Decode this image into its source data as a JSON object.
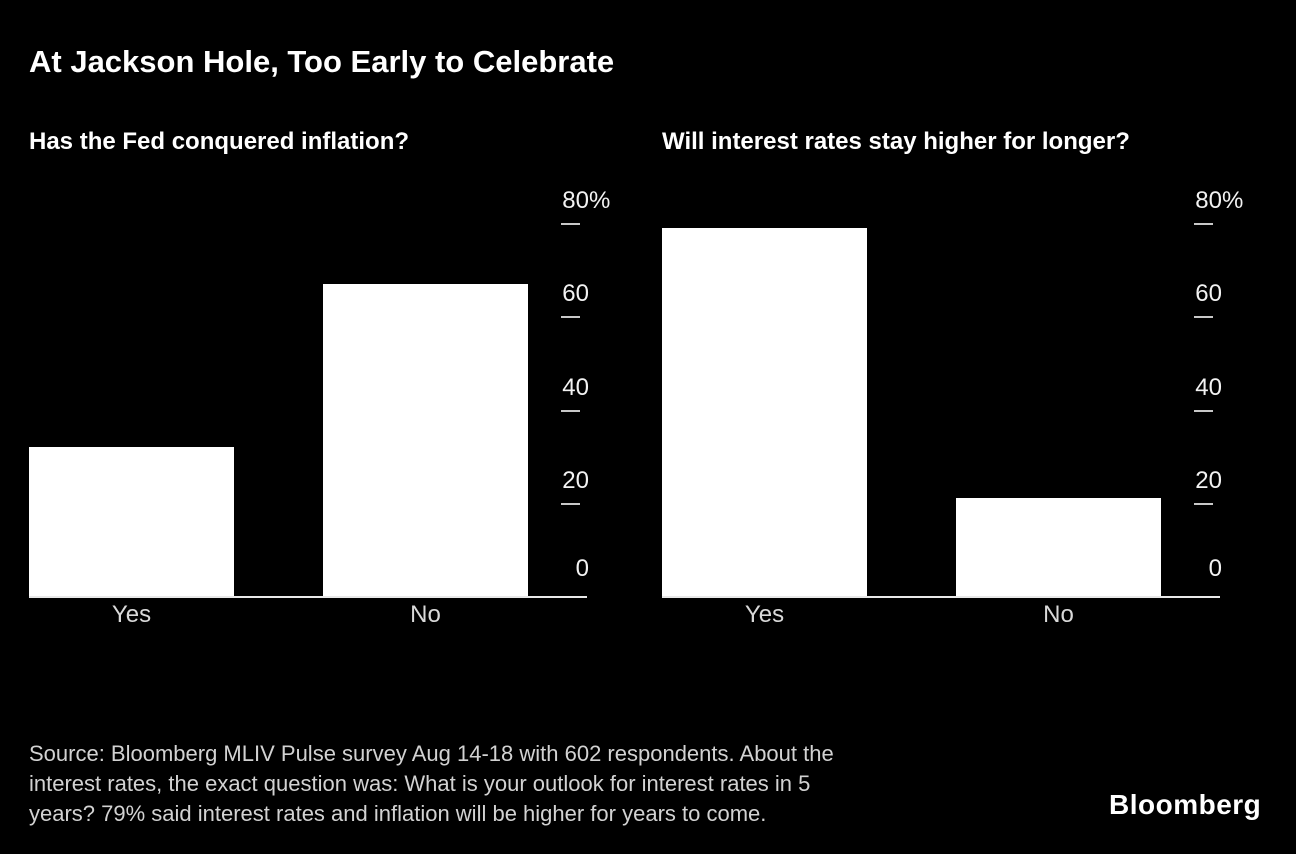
{
  "title": "At Jackson Hole, Too Early to Celebrate",
  "colors": {
    "background": "#000000",
    "title": "#ffffff",
    "subtitle": "#ffffff",
    "bar": "#ffffff",
    "axis_label": "#f2f2f2",
    "tick": "#c8c8c8",
    "baseline": "#e8e8e8",
    "category_label": "#d9d9d9",
    "footer": "#d2d2d2",
    "logo": "#ffffff"
  },
  "chart_data": [
    {
      "type": "bar",
      "title": "Has the Fed conquered inflation?",
      "categories": [
        "Yes",
        "No"
      ],
      "values": [
        32,
        67
      ],
      "unit": "%",
      "ylim": [
        0,
        80
      ],
      "yticks": [
        80,
        60,
        40,
        20,
        0
      ],
      "ytick_labels": [
        "80%",
        "60",
        "40",
        "20",
        "0"
      ],
      "grid": false,
      "axis_side": "right",
      "bar_color": "#ffffff"
    },
    {
      "type": "bar",
      "title": "Will interest rates stay higher for longer?",
      "categories": [
        "Yes",
        "No"
      ],
      "values": [
        79,
        21
      ],
      "unit": "%",
      "ylim": [
        0,
        80
      ],
      "yticks": [
        80,
        60,
        40,
        20,
        0
      ],
      "ytick_labels": [
        "80%",
        "60",
        "40",
        "20",
        "0"
      ],
      "grid": false,
      "axis_side": "right",
      "bar_color": "#ffffff"
    }
  ],
  "footer": {
    "lines": [
      "Source: Bloomberg MLIV Pulse survey Aug 14-18 with 602 respondents. About the",
      "interest rates, the exact question was: What is your outlook for interest rates in 5",
      "years? 79% said interest rates and inflation will be higher for years to come."
    ],
    "logo": "Bloomberg"
  }
}
